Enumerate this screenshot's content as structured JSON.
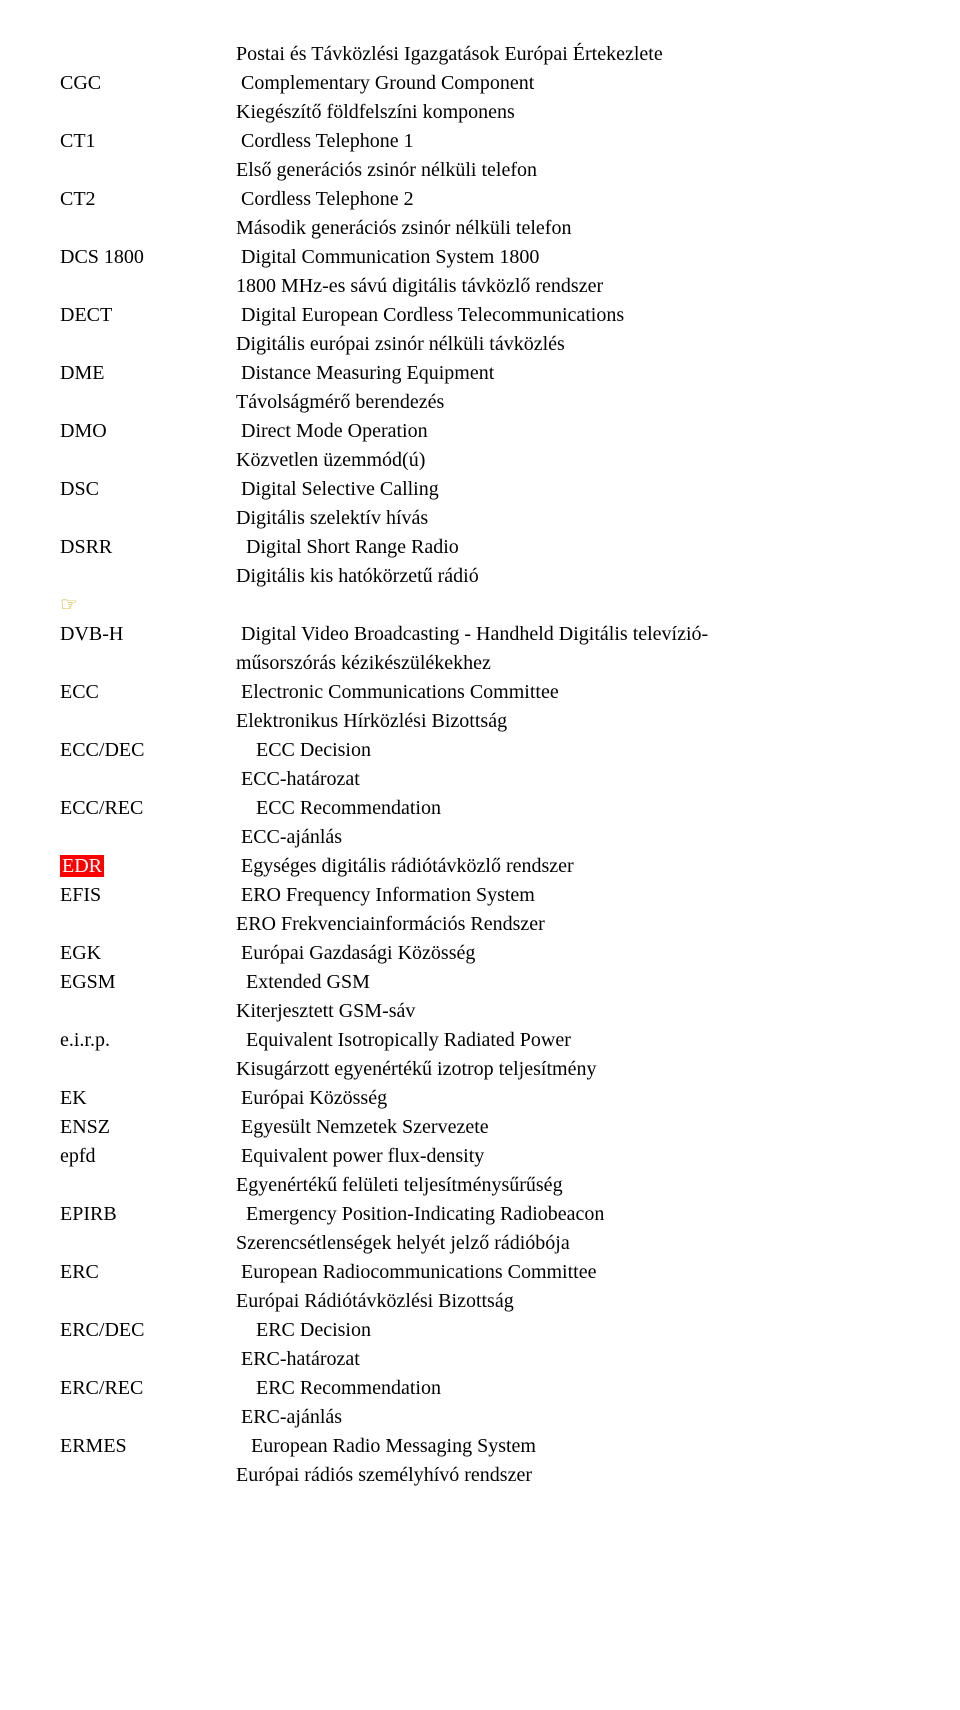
{
  "topDefs": [
    "Postai és Távközlési Igazgatások Európai Értekezlete"
  ],
  "entries": [
    {
      "abbr": "CGC",
      "defs": [
        " Complementary Ground Component",
        "Kiegészítő földfelszíni komponens"
      ]
    },
    {
      "abbr": "CT1",
      "defs": [
        " Cordless Telephone 1",
        "Első generációs zsinór nélküli telefon"
      ]
    },
    {
      "abbr": "CT2",
      "defs": [
        " Cordless Telephone 2",
        "Második generációs zsinór nélküli telefon"
      ]
    },
    {
      "abbr": "DCS 1800",
      "defs": [
        " Digital Communication System 1800",
        "1800 MHz-es sávú digitális távközlő rendszer"
      ]
    },
    {
      "abbr": "DECT",
      "defs": [
        " Digital European Cordless Telecommunications",
        "Digitális európai zsinór nélküli távközlés"
      ]
    },
    {
      "abbr": "DME",
      "defs": [
        " Distance Measuring Equipment",
        "Távolságmérő berendezés"
      ]
    },
    {
      "abbr": "DMO",
      "defs": [
        " Direct Mode Operation",
        "Közvetlen üzemmód(ú)"
      ]
    },
    {
      "abbr": "DSC",
      "defs": [
        " Digital Selective Calling",
        "Digitális szelektív hívás"
      ]
    },
    {
      "abbr": "DSRR",
      "defs": [
        "  Digital Short Range Radio",
        "Digitális kis hatókörzetű rádió"
      ]
    },
    {
      "abbr": "__ICON__",
      "defs": []
    },
    {
      "abbr": "DVB-H",
      "defs": [
        " Digital Video Broadcasting - Handheld Digitális televízió-",
        "műsorszórás kézikészülékekhez"
      ]
    },
    {
      "abbr": "ECC",
      "defs": [
        " Electronic Communications Committee",
        "Elektronikus Hírközlési Bizottság"
      ]
    },
    {
      "abbr": "ECC/DEC",
      "defs": [
        "    ECC Decision",
        " ECC-határozat"
      ]
    },
    {
      "abbr": "ECC/REC",
      "defs": [
        "    ECC Recommendation",
        " ECC-ajánlás"
      ]
    },
    {
      "abbr": "EDR",
      "highlight": true,
      "defs": [
        " Egységes digitális rádiótávközlő rendszer"
      ]
    },
    {
      "abbr": "EFIS",
      "defs": [
        " ERO Frequency Information System",
        "ERO Frekvenciainformációs Rendszer"
      ]
    },
    {
      "abbr": "EGK",
      "defs": [
        " Európai Gazdasági Közösség"
      ]
    },
    {
      "abbr": "EGSM",
      "defs": [
        "  Extended GSM",
        "Kiterjesztett GSM-sáv"
      ]
    },
    {
      "abbr": "e.i.r.p.",
      "defs": [
        "  Equivalent Isotropically Radiated Power",
        "Kisugárzott egyenértékű izotrop teljesítmény"
      ]
    },
    {
      "abbr": "EK",
      "defs": [
        " Európai Közösség"
      ]
    },
    {
      "abbr": "ENSZ",
      "defs": [
        " Egyesült Nemzetek Szervezete"
      ]
    },
    {
      "abbr": "epfd",
      "defs": [
        " Equivalent power flux-density",
        "Egyenértékű felületi teljesítménysűrűség"
      ]
    },
    {
      "abbr": "EPIRB",
      "defs": [
        "  Emergency Position-Indicating Radiobeacon",
        "Szerencsétlenségek helyét jelző rádióbója"
      ]
    },
    {
      "abbr": "ERC",
      "defs": [
        " European Radiocommunications Committee",
        "Európai Rádiótávközlési Bizottság"
      ]
    },
    {
      "abbr": "ERC/DEC",
      "defs": [
        "    ERC Decision",
        " ERC-határozat"
      ]
    },
    {
      "abbr": "ERC/REC",
      "defs": [
        "    ERC Recommendation",
        " ERC-ajánlás"
      ]
    },
    {
      "abbr": "ERMES",
      "defs": [
        "   European Radio Messaging System",
        "Európai rádiós személyhívó rendszer"
      ]
    }
  ]
}
